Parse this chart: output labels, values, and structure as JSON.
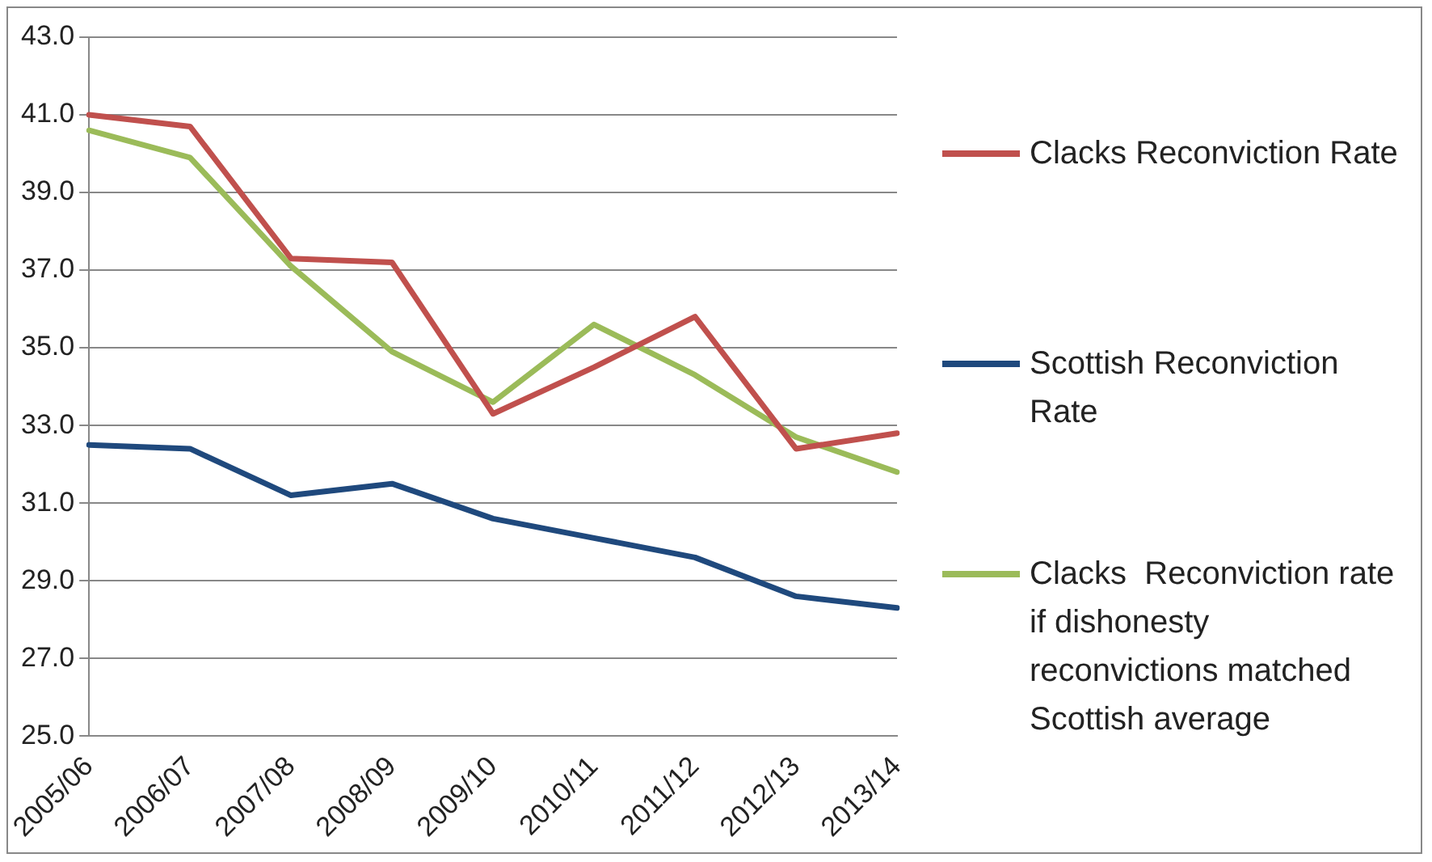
{
  "chart_data": {
    "type": "line",
    "categories": [
      "2005/06",
      "2006/07",
      "2007/08",
      "2008/09",
      "2009/10",
      "2010/11",
      "2011/12",
      "2012/13",
      "2013/14"
    ],
    "series": [
      {
        "name": "Clacks Reconviction Rate",
        "color": "#c0504d",
        "values": [
          41.0,
          40.7,
          37.3,
          37.2,
          33.3,
          34.5,
          35.8,
          32.4,
          32.8
        ]
      },
      {
        "name": "Scottish Reconviction Rate",
        "color": "#1f497d",
        "values": [
          32.5,
          32.4,
          31.2,
          31.5,
          30.6,
          30.1,
          29.6,
          28.6,
          28.3
        ]
      },
      {
        "name": "Clacks  Reconviction rate if dishonesty reconvictions matched Scottish average",
        "color": "#9bbb59",
        "values": [
          40.6,
          39.9,
          37.1,
          34.9,
          33.6,
          35.6,
          34.3,
          32.7,
          31.8
        ]
      }
    ],
    "ylim": [
      25,
      43
    ],
    "yticks": [
      {
        "value": 25,
        "label": "25.0"
      },
      {
        "value": 27,
        "label": "27.0"
      },
      {
        "value": 29,
        "label": "29.0"
      },
      {
        "value": 31,
        "label": "31.0"
      },
      {
        "value": 33,
        "label": "33.0"
      },
      {
        "value": 35,
        "label": "35.0"
      },
      {
        "value": 37,
        "label": "37.0"
      },
      {
        "value": 39,
        "label": "39.0"
      },
      {
        "value": 41,
        "label": "41.0"
      },
      {
        "value": 43,
        "label": "43.0"
      }
    ],
    "grid": "y",
    "legend": "right",
    "marker": "none",
    "line_style": "solid"
  }
}
